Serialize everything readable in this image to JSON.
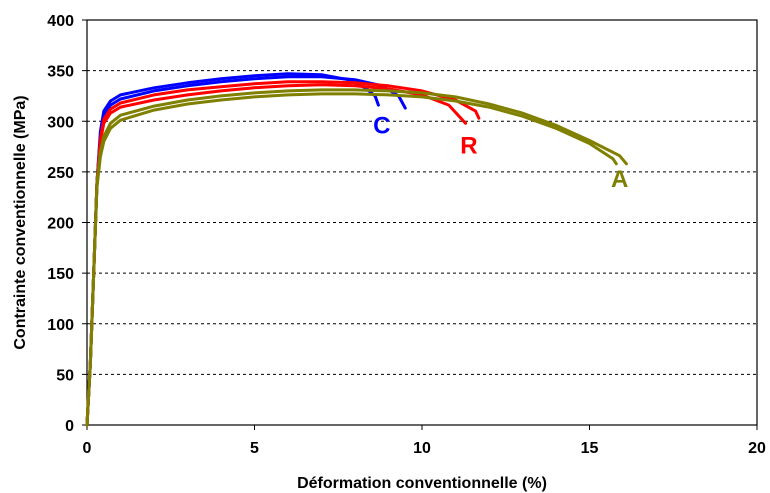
{
  "chart_data": {
    "type": "line",
    "title": "",
    "xlabel": "Déformation conventionnelle (%)",
    "ylabel": "Contrainte conventionnelle (MPa)",
    "xlim": [
      0,
      20
    ],
    "ylim": [
      0,
      400
    ],
    "xticks": [
      0,
      5,
      10,
      15,
      20
    ],
    "yticks": [
      0,
      50,
      100,
      150,
      200,
      250,
      300,
      350,
      400
    ],
    "grid": "horizontal dashed",
    "legend": "none",
    "series": [
      {
        "name": "C",
        "color": "#0000ff",
        "curves": [
          [
            [
              0,
              0
            ],
            [
              0.1,
              60
            ],
            [
              0.2,
              150
            ],
            [
              0.3,
              240
            ],
            [
              0.4,
              290
            ],
            [
              0.5,
              310
            ],
            [
              0.7,
              320
            ],
            [
              1,
              326
            ],
            [
              2,
              333
            ],
            [
              3,
              338
            ],
            [
              4,
              342
            ],
            [
              5,
              345
            ],
            [
              6,
              347
            ],
            [
              7,
              346
            ],
            [
              7.8,
              341
            ],
            [
              8.3,
              333
            ],
            [
              8.6,
              325
            ],
            [
              8.7,
              316
            ]
          ],
          [
            [
              0,
              0
            ],
            [
              0.1,
              60
            ],
            [
              0.2,
              150
            ],
            [
              0.3,
              240
            ],
            [
              0.4,
              285
            ],
            [
              0.5,
              305
            ],
            [
              0.7,
              316
            ],
            [
              1,
              322
            ],
            [
              2,
              330
            ],
            [
              3,
              335
            ],
            [
              4,
              339
            ],
            [
              5,
              342
            ],
            [
              6,
              344
            ],
            [
              7,
              344
            ],
            [
              8,
              341
            ],
            [
              8.8,
              335
            ],
            [
              9.3,
              325
            ],
            [
              9.5,
              313
            ]
          ]
        ]
      },
      {
        "name": "R",
        "color": "#ff0000",
        "curves": [
          [
            [
              0,
              0
            ],
            [
              0.1,
              60
            ],
            [
              0.2,
              150
            ],
            [
              0.3,
              240
            ],
            [
              0.4,
              280
            ],
            [
              0.5,
              298
            ],
            [
              0.7,
              308
            ],
            [
              1,
              314
            ],
            [
              2,
              321
            ],
            [
              3,
              326
            ],
            [
              4,
              330
            ],
            [
              5,
              333
            ],
            [
              6,
              335
            ],
            [
              7,
              336
            ],
            [
              8,
              335
            ],
            [
              9,
              332
            ],
            [
              10,
              326
            ],
            [
              10.8,
              316
            ],
            [
              11.3,
              298
            ]
          ],
          [
            [
              0,
              0
            ],
            [
              0.1,
              60
            ],
            [
              0.2,
              150
            ],
            [
              0.3,
              240
            ],
            [
              0.4,
              283
            ],
            [
              0.5,
              302
            ],
            [
              0.7,
              312
            ],
            [
              1,
              318
            ],
            [
              2,
              326
            ],
            [
              3,
              331
            ],
            [
              4,
              334
            ],
            [
              5,
              337
            ],
            [
              6,
              339
            ],
            [
              7,
              339
            ],
            [
              8,
              338
            ],
            [
              9,
              335
            ],
            [
              10,
              330
            ],
            [
              11,
              321
            ],
            [
              11.6,
              310
            ],
            [
              11.7,
              303
            ]
          ]
        ]
      },
      {
        "name": "A",
        "color": "#808000",
        "curves": [
          [
            [
              0,
              0
            ],
            [
              0.1,
              60
            ],
            [
              0.2,
              150
            ],
            [
              0.3,
              235
            ],
            [
              0.4,
              265
            ],
            [
              0.5,
              280
            ],
            [
              0.7,
              293
            ],
            [
              1,
              301
            ],
            [
              2,
              311
            ],
            [
              3,
              317
            ],
            [
              4,
              321
            ],
            [
              5,
              324
            ],
            [
              6,
              326
            ],
            [
              7,
              327
            ],
            [
              8,
              327
            ],
            [
              9,
              326
            ],
            [
              10,
              324
            ],
            [
              11,
              320
            ],
            [
              12,
              314
            ],
            [
              13,
              305
            ],
            [
              14,
              293
            ],
            [
              15,
              278
            ],
            [
              15.7,
              263
            ],
            [
              15.8,
              258
            ]
          ],
          [
            [
              0,
              0
            ],
            [
              0.1,
              60
            ],
            [
              0.2,
              150
            ],
            [
              0.3,
              240
            ],
            [
              0.4,
              270
            ],
            [
              0.5,
              285
            ],
            [
              0.7,
              298
            ],
            [
              1,
              306
            ],
            [
              2,
              315
            ],
            [
              3,
              321
            ],
            [
              4,
              325
            ],
            [
              5,
              328
            ],
            [
              6,
              330
            ],
            [
              7,
              331
            ],
            [
              8,
              331
            ],
            [
              9,
              330
            ],
            [
              10,
              328
            ],
            [
              11,
              324
            ],
            [
              12,
              317
            ],
            [
              13,
              308
            ],
            [
              14,
              296
            ],
            [
              15,
              281
            ],
            [
              15.9,
              266
            ],
            [
              16.1,
              258
            ]
          ]
        ]
      }
    ],
    "annotations": [
      {
        "text": "C",
        "x": 8.8,
        "y": 288,
        "color": "#0000ff"
      },
      {
        "text": "R",
        "x": 11.4,
        "y": 268,
        "color": "#ff0000"
      },
      {
        "text": "A",
        "x": 15.9,
        "y": 235,
        "color": "#808000"
      }
    ]
  }
}
